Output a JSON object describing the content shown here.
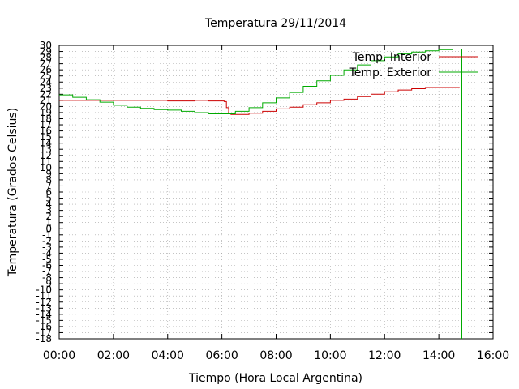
{
  "chart_data": {
    "type": "line",
    "title": "Temperatura 29/11/2014",
    "xlabel": "Tiempo (Hora Local Argentina)",
    "ylabel": "Temperatura (Grados Celsius)",
    "xlim": [
      "00:00",
      "16:00"
    ],
    "ylim": [
      -18,
      30
    ],
    "x_ticks": [
      "00:00",
      "02:00",
      "04:00",
      "06:00",
      "08:00",
      "10:00",
      "12:00",
      "14:00",
      "16:00"
    ],
    "y_ticks": [
      -18,
      -17,
      -16,
      -15,
      -14,
      -13,
      -12,
      -11,
      -10,
      -9,
      -8,
      -7,
      -6,
      -5,
      -4,
      -3,
      -2,
      -1,
      0,
      1,
      2,
      3,
      4,
      5,
      6,
      7,
      8,
      9,
      10,
      11,
      12,
      13,
      14,
      15,
      16,
      17,
      18,
      19,
      20,
      21,
      22,
      23,
      24,
      25,
      26,
      27,
      28,
      29,
      30
    ],
    "grid": true,
    "legend_position": "top-right",
    "series": [
      {
        "name": "Temp. Interior",
        "color": "#cc0000",
        "x": [
          "00:00",
          "00:30",
          "01:00",
          "01:30",
          "02:00",
          "02:30",
          "03:00",
          "03:30",
          "04:00",
          "04:30",
          "05:00",
          "05:30",
          "06:00",
          "06:05",
          "06:10",
          "06:15",
          "06:20",
          "06:30",
          "06:45",
          "07:00",
          "07:30",
          "08:00",
          "08:30",
          "09:00",
          "09:30",
          "10:00",
          "10:30",
          "11:00",
          "11:30",
          "12:00",
          "12:30",
          "13:00",
          "13:30",
          "14:00",
          "14:30",
          "14:45",
          "14:46"
        ],
        "y": [
          21.0,
          21.0,
          21.0,
          21.0,
          21.0,
          21.0,
          21.0,
          21.0,
          20.9,
          20.9,
          21.0,
          20.9,
          20.9,
          20.8,
          19.8,
          18.9,
          18.7,
          18.7,
          18.7,
          18.9,
          19.2,
          19.6,
          19.9,
          20.3,
          20.6,
          21.0,
          21.2,
          21.6,
          22.0,
          22.4,
          22.7,
          22.9,
          23.1,
          23.1,
          23.1,
          23.1,
          23.1
        ]
      },
      {
        "name": "Temp. Exterior",
        "color": "#00aa00",
        "x": [
          "00:00",
          "00:30",
          "01:00",
          "01:30",
          "02:00",
          "02:30",
          "03:00",
          "03:30",
          "04:00",
          "04:30",
          "05:00",
          "05:30",
          "06:00",
          "06:30",
          "07:00",
          "07:30",
          "08:00",
          "08:30",
          "09:00",
          "09:30",
          "10:00",
          "10:30",
          "11:00",
          "11:30",
          "12:00",
          "12:30",
          "13:00",
          "13:30",
          "14:00",
          "14:30",
          "14:50",
          "14:51"
        ],
        "y": [
          21.9,
          21.5,
          21.1,
          20.7,
          20.2,
          19.9,
          19.7,
          19.5,
          19.4,
          19.2,
          19.0,
          18.8,
          18.8,
          19.2,
          19.8,
          20.6,
          21.4,
          22.3,
          23.3,
          24.2,
          25.1,
          26.0,
          26.8,
          27.5,
          28.1,
          28.6,
          28.9,
          29.1,
          29.3,
          29.4,
          29.3,
          -18
        ]
      }
    ]
  }
}
